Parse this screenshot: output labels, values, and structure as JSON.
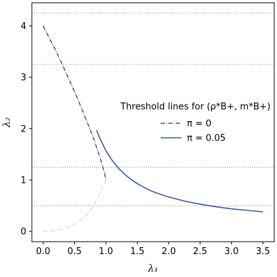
{
  "chart_data": {
    "type": "line",
    "xlabel": "λ₁",
    "ylabel": "λ₂",
    "xlim": [
      -0.18,
      3.68
    ],
    "ylim": [
      -0.2,
      4.45
    ],
    "xticks": [
      0.0,
      0.5,
      1.0,
      1.5,
      2.0,
      2.5,
      3.0,
      3.5
    ],
    "xtick_labels": [
      "0.0",
      "0.5",
      "1.0",
      "1.5",
      "2.0",
      "2.5",
      "3.0",
      "3.5"
    ],
    "yticks": [
      0,
      1,
      2,
      3,
      4
    ],
    "ytick_labels": [
      "0",
      "1",
      "2",
      "3",
      "4"
    ],
    "grid": false,
    "threshold_lines": [
      4.25,
      3.25,
      1.25,
      0.5
    ],
    "legend": {
      "title": "Threshold lines for (ρ*B+, m*B+)",
      "placement": "center-right",
      "entries": [
        {
          "label": "π = 0",
          "color": "#000000",
          "style": "dashdot"
        },
        {
          "label": "π = 0.05",
          "color": "#3a5a9a",
          "style": "solid"
        }
      ]
    },
    "series": [
      {
        "name": "π = 0",
        "color": "#000000",
        "style": "dashdot",
        "points": [
          [
            0.0,
            4.0
          ],
          [
            0.1,
            3.76
          ],
          [
            0.2,
            3.52
          ],
          [
            0.3,
            3.26
          ],
          [
            0.4,
            2.99
          ],
          [
            0.5,
            2.72
          ],
          [
            0.6,
            2.43
          ],
          [
            0.7,
            2.13
          ],
          [
            0.8,
            1.82
          ],
          [
            0.85,
            1.64
          ],
          [
            0.9,
            1.46
          ],
          [
            0.95,
            1.26
          ],
          [
            0.98,
            1.12
          ],
          [
            1.0,
            1.0
          ]
        ]
      },
      {
        "name": "",
        "color": "#c8c8c8",
        "style": "dashdot",
        "points": [
          [
            0.0,
            0.0
          ],
          [
            0.1,
            0.005
          ],
          [
            0.2,
            0.02
          ],
          [
            0.3,
            0.045
          ],
          [
            0.4,
            0.08
          ],
          [
            0.5,
            0.14
          ],
          [
            0.6,
            0.22
          ],
          [
            0.7,
            0.33
          ],
          [
            0.8,
            0.5
          ],
          [
            0.9,
            0.72
          ],
          [
            0.95,
            0.86
          ],
          [
            1.0,
            1.0
          ]
        ]
      },
      {
        "name": "π = 0.05",
        "color": "#3a5a9a",
        "style": "solid",
        "points": [
          [
            0.85,
            1.97
          ],
          [
            0.9,
            1.82
          ],
          [
            1.0,
            1.57
          ],
          [
            1.1,
            1.38
          ],
          [
            1.2,
            1.23
          ],
          [
            1.3,
            1.11
          ],
          [
            1.4,
            1.01
          ],
          [
            1.5,
            0.93
          ],
          [
            1.6,
            0.86
          ],
          [
            1.7,
            0.8
          ],
          [
            1.8,
            0.75
          ],
          [
            1.9,
            0.71
          ],
          [
            2.0,
            0.67
          ],
          [
            2.25,
            0.59
          ],
          [
            2.5,
            0.53
          ],
          [
            2.75,
            0.48
          ],
          [
            3.0,
            0.44
          ],
          [
            3.25,
            0.41
          ],
          [
            3.5,
            0.38
          ]
        ]
      }
    ]
  }
}
